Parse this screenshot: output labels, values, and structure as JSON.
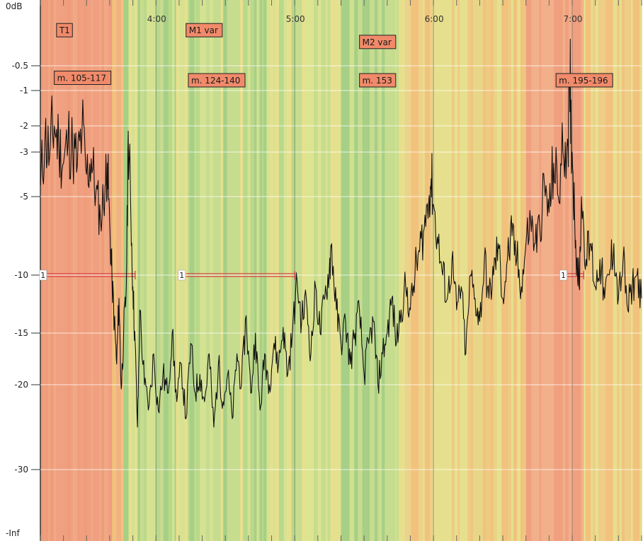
{
  "chart_data": {
    "type": "line",
    "title": "",
    "xlabel": "",
    "ylabel": "",
    "x_unit": "seconds",
    "xlim": [
      190,
      450
    ],
    "time_ticks": [
      {
        "t": 240,
        "label": "4:00"
      },
      {
        "t": 300,
        "label": "5:00"
      },
      {
        "t": 360,
        "label": "6:00"
      },
      {
        "t": 420,
        "label": "7:00"
      }
    ],
    "y_ticks": [
      {
        "db": 0,
        "label": "0dB"
      },
      {
        "db": -0.5,
        "label": "-0.5"
      },
      {
        "db": -1,
        "label": "-1"
      },
      {
        "db": -2,
        "label": "-2"
      },
      {
        "db": -3,
        "label": "-3"
      },
      {
        "db": -5,
        "label": "-5"
      },
      {
        "db": -10,
        "label": "-10"
      },
      {
        "db": -15,
        "label": "-15"
      },
      {
        "db": -20,
        "label": "-20"
      },
      {
        "db": -30,
        "label": "-30"
      },
      {
        "db": null,
        "label": "-Inf"
      }
    ],
    "grid": true,
    "series": [
      {
        "points": [
          [
            190,
            -4.5
          ],
          [
            192,
            -2.5
          ],
          [
            194,
            -3.2
          ],
          [
            196,
            -2.0
          ],
          [
            198,
            -2.8
          ],
          [
            200,
            -3.5
          ],
          [
            202,
            -2.6
          ],
          [
            204,
            -3.0
          ],
          [
            206,
            -3.6
          ],
          [
            208,
            -2.2
          ],
          [
            210,
            -4.0
          ],
          [
            212,
            -3.3
          ],
          [
            214,
            -4.8
          ],
          [
            216,
            -6.5
          ],
          [
            218,
            -4.5
          ],
          [
            219,
            -3.5
          ],
          [
            220,
            -6.8
          ],
          [
            221,
            -10.5
          ],
          [
            222,
            -14
          ],
          [
            223,
            -18
          ],
          [
            224,
            -12
          ],
          [
            225,
            -20.5
          ],
          [
            226,
            -15
          ],
          [
            227,
            -12
          ],
          [
            228,
            -2.2
          ],
          [
            229,
            -5
          ],
          [
            230,
            -11
          ],
          [
            231,
            -16
          ],
          [
            232,
            -25
          ],
          [
            233,
            -13
          ],
          [
            235,
            -20
          ],
          [
            237,
            -22.5
          ],
          [
            239,
            -17
          ],
          [
            241,
            -23
          ],
          [
            243,
            -19
          ],
          [
            245,
            -21
          ],
          [
            247,
            -15
          ],
          [
            249,
            -22
          ],
          [
            251,
            -18
          ],
          [
            253,
            -24
          ],
          [
            255,
            -16
          ],
          [
            257,
            -21
          ],
          [
            259,
            -19
          ],
          [
            261,
            -22
          ],
          [
            263,
            -17
          ],
          [
            265,
            -25
          ],
          [
            267,
            -18
          ],
          [
            269,
            -22
          ],
          [
            271,
            -19
          ],
          [
            273,
            -24
          ],
          [
            275,
            -17
          ],
          [
            277,
            -20
          ],
          [
            279,
            -13.5
          ],
          [
            281,
            -21
          ],
          [
            283,
            -15
          ],
          [
            285,
            -23
          ],
          [
            287,
            -17
          ],
          [
            289,
            -20
          ],
          [
            291,
            -16
          ],
          [
            293,
            -18
          ],
          [
            295,
            -14.5
          ],
          [
            297,
            -19
          ],
          [
            299,
            -15
          ],
          [
            301,
            -10.5
          ],
          [
            303,
            -14
          ],
          [
            305,
            -12
          ],
          [
            307,
            -17
          ],
          [
            309,
            -11
          ],
          [
            311,
            -15
          ],
          [
            313,
            -12
          ],
          [
            315,
            -9.5
          ],
          [
            316,
            -8
          ],
          [
            318,
            -13
          ],
          [
            320,
            -16
          ],
          [
            322,
            -14
          ],
          [
            324,
            -18
          ],
          [
            326,
            -15
          ],
          [
            328,
            -13
          ],
          [
            330,
            -19
          ],
          [
            332,
            -16
          ],
          [
            334,
            -14
          ],
          [
            336,
            -20
          ],
          [
            338,
            -17
          ],
          [
            340,
            -15
          ],
          [
            342,
            -12
          ],
          [
            344,
            -16
          ],
          [
            346,
            -13
          ],
          [
            348,
            -11
          ],
          [
            350,
            -13
          ],
          [
            352,
            -10
          ],
          [
            354,
            -8.5
          ],
          [
            356,
            -7
          ],
          [
            358,
            -5.2
          ],
          [
            359,
            -4.2
          ],
          [
            360,
            -5.5
          ],
          [
            362,
            -8
          ],
          [
            364,
            -10
          ],
          [
            366,
            -12
          ],
          [
            368,
            -9
          ],
          [
            370,
            -13
          ],
          [
            372,
            -11
          ],
          [
            374,
            -17
          ],
          [
            376,
            -10
          ],
          [
            378,
            -12
          ],
          [
            380,
            -14
          ],
          [
            382,
            -9
          ],
          [
            384,
            -12
          ],
          [
            386,
            -10
          ],
          [
            388,
            -8
          ],
          [
            390,
            -12
          ],
          [
            392,
            -9
          ],
          [
            394,
            -7.5
          ],
          [
            396,
            -9
          ],
          [
            398,
            -11
          ],
          [
            400,
            -8
          ],
          [
            402,
            -6.5
          ],
          [
            404,
            -8
          ],
          [
            406,
            -7
          ],
          [
            408,
            -4.5
          ],
          [
            410,
            -6
          ],
          [
            412,
            -3.5
          ],
          [
            414,
            -5
          ],
          [
            416,
            -3
          ],
          [
            418,
            -2.5
          ],
          [
            419,
            -1.6
          ],
          [
            420,
            -3
          ],
          [
            421,
            -6
          ],
          [
            422,
            -9
          ],
          [
            423,
            -11
          ],
          [
            424,
            -5
          ],
          [
            426,
            -9
          ],
          [
            428,
            -8
          ],
          [
            430,
            -11
          ],
          [
            432,
            -9
          ],
          [
            434,
            -12
          ],
          [
            436,
            -10
          ],
          [
            438,
            -8
          ],
          [
            440,
            -12
          ],
          [
            442,
            -9
          ],
          [
            444,
            -13
          ],
          [
            446,
            -11
          ],
          [
            448,
            -10
          ],
          [
            450,
            -12
          ]
        ]
      }
    ],
    "markers": [
      {
        "label": "T1",
        "t": 197,
        "db": -0.2
      },
      {
        "label": "M1 var",
        "t": 253,
        "db": -0.2
      },
      {
        "label": "M2 var",
        "t": 328,
        "db": -0.3
      },
      {
        "label": "m. 105-117",
        "t": 196,
        "db": -0.75
      },
      {
        "label": "m. 124-140",
        "t": 254,
        "db": -0.8
      },
      {
        "label": "m. 153",
        "t": 328,
        "db": -0.8
      },
      {
        "label": "m. 195-196",
        "t": 413,
        "db": -0.8
      }
    ],
    "loops": [
      {
        "label": "1",
        "start": 193,
        "end": 231,
        "db": -10
      },
      {
        "label": "1",
        "start": 253,
        "end": 300,
        "db": -10
      },
      {
        "label": "1",
        "start": 418,
        "end": 425,
        "db": -10
      }
    ],
    "colors": {
      "red_band": "#f0a080",
      "orange_band": "#f2c27c",
      "yellow_band": "#e6e08e",
      "green_band": "#c6dc8e",
      "deep_green": "#a7cf86",
      "marker_fill": "#f08a6a",
      "loop_line": "#d84040",
      "curve": "#111111"
    }
  }
}
